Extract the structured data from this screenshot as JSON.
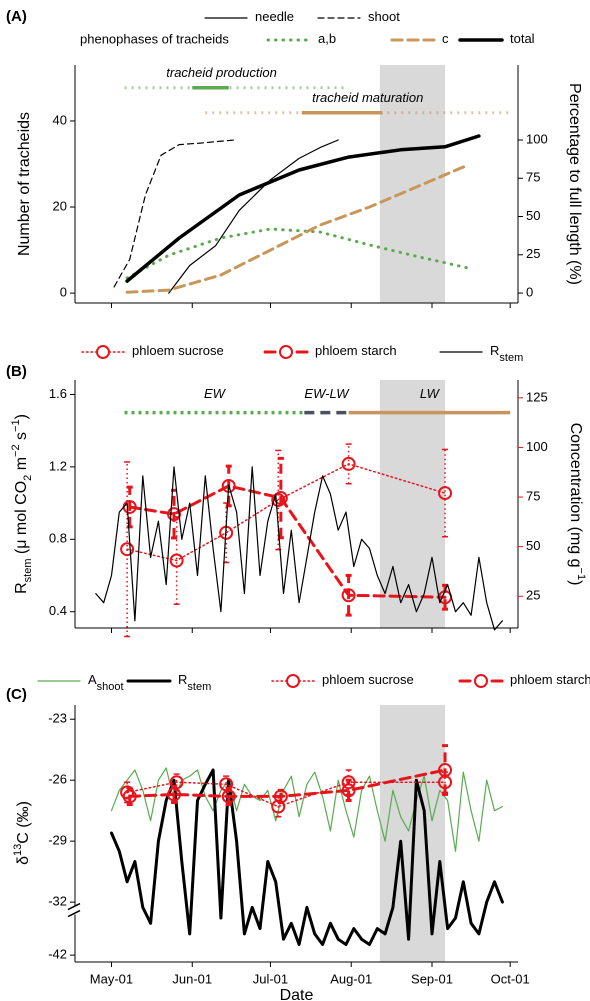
{
  "chart_data": [
    {
      "type": "line",
      "panel": "(A)",
      "ylabel": [
        {
          "text": "Number of tracheids"
        }
      ],
      "y2label": [
        {
          "text": "Percentage to full length (%)"
        }
      ],
      "xlim": [
        107,
        277
      ],
      "xticks": [
        121,
        152,
        182,
        213,
        244,
        274
      ],
      "ylim": [
        -2.3,
        53
      ],
      "yticks": [
        0,
        20,
        40
      ],
      "y2lim": [
        -6.5,
        149
      ],
      "y2ticks": [
        0,
        25,
        50,
        75,
        100
      ],
      "shade": [
        224,
        249
      ],
      "legend_title": "phenophases of tracheids",
      "series": [
        {
          "name": "needle",
          "color": "#000000",
          "dash": "solid",
          "width": 1.2,
          "axis": "y2",
          "x": [
            143,
            151,
            161,
            170,
            182,
            193,
            201,
            208
          ],
          "values": [
            0,
            18,
            31,
            54,
            74,
            88,
            95,
            100
          ]
        },
        {
          "name": "shoot",
          "color": "#000000",
          "dash": "dashed",
          "width": 1.2,
          "axis": "y2",
          "x": [
            122,
            128,
            134,
            140,
            147,
            155,
            168
          ],
          "values": [
            4,
            22,
            64,
            90,
            97,
            98,
            100
          ]
        },
        {
          "name": "a,b",
          "color": "#5aab50",
          "dash": "dotted",
          "width": 3,
          "x": [
            127,
            143,
            163,
            182,
            201,
            220,
            239,
            258
          ],
          "values": [
            3.5,
            8.8,
            12.8,
            14.9,
            14.2,
            11.2,
            8.4,
            5.8
          ]
        },
        {
          "name": "c",
          "color": "#c8965a",
          "dash": "dashed",
          "width": 3,
          "x": [
            127,
            143,
            163,
            182,
            201,
            220,
            239,
            258
          ],
          "values": [
            0.2,
            0.7,
            4.2,
            10,
            15.8,
            20,
            24.9,
            29.8
          ]
        },
        {
          "name": "total",
          "color": "#000000",
          "dash": "solid",
          "width": 3.5,
          "x": [
            127,
            147,
            170,
            193,
            212,
            232,
            249,
            262
          ],
          "values": [
            2.8,
            12.8,
            22.8,
            28.6,
            31.6,
            33.3,
            34,
            36.5
          ]
        }
      ],
      "phase_bars": [
        {
          "label": "tracheid production",
          "color": "#5aab50",
          "level": 47.7,
          "range": [
            126,
            212
          ],
          "solid": [
            152,
            166
          ]
        },
        {
          "label": "tracheid maturation",
          "color": "#c8965a",
          "level": 41.9,
          "range": [
            157,
            274
          ],
          "solid": [
            194,
            225
          ]
        }
      ]
    },
    {
      "type": "line",
      "panel": "(B)",
      "ylabel": [
        {
          "text": "R"
        },
        {
          "text": "stem",
          "shift": "sub"
        },
        {
          "text": " (μ mol CO"
        },
        {
          "text": "2",
          "shift": "sub"
        },
        {
          "text": " m"
        },
        {
          "text": "−2",
          "shift": "super"
        },
        {
          "text": " s"
        },
        {
          "text": "−1",
          "shift": "super"
        },
        {
          "text": ")"
        }
      ],
      "y2label": [
        {
          "text": "Concentration (mg g"
        },
        {
          "text": "−1",
          "shift": "super"
        },
        {
          "text": ")"
        }
      ],
      "y2color": "#e8141c",
      "xlim": [
        107,
        277
      ],
      "xticks": [
        121,
        152,
        182,
        213,
        244,
        274
      ],
      "ylim": [
        0.31,
        1.68
      ],
      "yticks": [
        0.4,
        0.8,
        1.2,
        1.6
      ],
      "y2lim": [
        9,
        134
      ],
      "y2ticks": [
        25,
        50,
        75,
        100,
        125
      ],
      "shade": [
        224,
        249
      ],
      "series": [
        {
          "name": "phloem sucrose",
          "color": "#e8141c",
          "dash": "dotted",
          "width": 1.5,
          "axis": "y2",
          "marker": "circle",
          "x": [
            127,
            146,
            165,
            185,
            212,
            249
          ],
          "values": [
            48.7,
            43,
            57,
            73.5,
            91.7,
            77
          ],
          "errors": [
            44,
            22,
            15,
            25,
            10,
            22
          ]
        },
        {
          "name": "phloem starch",
          "color": "#e8141c",
          "dash": "dashed",
          "width": 3,
          "axis": "y2",
          "marker": "circle",
          "x": [
            128,
            145,
            166,
            186,
            212,
            249
          ],
          "values": [
            70,
            66.4,
            80.6,
            74.5,
            25.5,
            24.5
          ],
          "errors": [
            10,
            12,
            10,
            20,
            10,
            6
          ]
        },
        {
          "name": "R",
          "subscript": "stem",
          "color": "#000000",
          "dash": "solid",
          "width": 1.2,
          "x": [
            115,
            118,
            121,
            124,
            127,
            130,
            133,
            136,
            139,
            142,
            145,
            148,
            151,
            154,
            157,
            160,
            163,
            166,
            169,
            172,
            175,
            178,
            181,
            184,
            187,
            190,
            193,
            196,
            199,
            202,
            205,
            208,
            211,
            214,
            217,
            220,
            223,
            226,
            229,
            232,
            235,
            238,
            241,
            244,
            247,
            250,
            253,
            256,
            259,
            262,
            265,
            268,
            271
          ],
          "values": [
            0.5,
            0.45,
            0.6,
            0.95,
            1.0,
            0.35,
            1.15,
            0.7,
            0.9,
            0.55,
            1.2,
            0.8,
            1.0,
            0.6,
            1.15,
            0.75,
            0.4,
            1.1,
            0.95,
            0.5,
            1.2,
            0.6,
            0.9,
            1.05,
            0.5,
            0.85,
            0.45,
            0.7,
            0.95,
            1.15,
            1.05,
            0.85,
            0.95,
            0.65,
            0.8,
            0.75,
            0.6,
            0.5,
            0.65,
            0.45,
            0.55,
            0.4,
            0.5,
            0.7,
            0.45,
            0.55,
            0.4,
            0.45,
            0.38,
            0.7,
            0.45,
            0.3,
            0.35
          ]
        }
      ],
      "phase_segments": {
        "level": 1.5,
        "items": [
          {
            "label": "EW",
            "color": "#5aab50",
            "dash": "dotted",
            "range": [
              126,
              195
            ]
          },
          {
            "label": "EW-LW",
            "color": "#4a5060",
            "dash": "dashed",
            "range": [
              195,
              212
            ]
          },
          {
            "label": "LW",
            "color": "#c8965a",
            "dash": "solid",
            "range": [
              212,
              274
            ]
          }
        ]
      }
    },
    {
      "type": "line",
      "panel": "(C)",
      "ylabel": [
        {
          "text": "δ"
        },
        {
          "text": "13",
          "shift": "super"
        },
        {
          "text": "C (‰)"
        }
      ],
      "xlabel": "Date",
      "xlim": [
        107,
        277
      ],
      "xticks": [
        {
          "value": 121,
          "label": "May-01"
        },
        {
          "value": 152,
          "label": "Jun-01"
        },
        {
          "value": 182,
          "label": "Jul-01"
        },
        {
          "value": 213,
          "label": "Aug-01"
        },
        {
          "value": 244,
          "label": "Sep-01"
        },
        {
          "value": 274,
          "label": "Oct-01"
        }
      ],
      "ylim": [
        -43.3,
        -22.3
      ],
      "yticks": [
        -23,
        -26,
        -29,
        -32,
        -42
      ],
      "ybreak": -32,
      "shade": [
        224,
        249
      ],
      "series": [
        {
          "name": "A",
          "subscript": "shoot",
          "color": "#5aab50",
          "dash": "solid",
          "width": 1.2,
          "x": [
            121,
            124,
            127,
            130,
            133,
            136,
            139,
            142,
            145,
            148,
            151,
            154,
            157,
            160,
            163,
            166,
            169,
            172,
            175,
            178,
            181,
            184,
            187,
            190,
            193,
            196,
            199,
            202,
            205,
            208,
            211,
            214,
            217,
            220,
            223,
            226,
            229,
            232,
            235,
            238,
            241,
            244,
            247,
            250,
            253,
            256,
            259,
            262,
            265,
            268,
            271
          ],
          "values": [
            -27.5,
            -26.5,
            -26,
            -25.5,
            -26.5,
            -28,
            -26,
            -25.4,
            -27,
            -26,
            -25.8,
            -25.5,
            -26.8,
            -27.5,
            -26.5,
            -26,
            -27.5,
            -26.2,
            -26.8,
            -27,
            -26.5,
            -28,
            -26.5,
            -25.8,
            -27.8,
            -26.2,
            -25.6,
            -26.8,
            -28.5,
            -26,
            -27.5,
            -28.8,
            -26.5,
            -25.8,
            -27.5,
            -29,
            -26.5,
            -27.8,
            -28.5,
            -27,
            -25.8,
            -28,
            -26.5,
            -27,
            -29.5,
            -25.6,
            -27.5,
            -29,
            -26,
            -27.5,
            -27.3
          ]
        },
        {
          "name": "R",
          "subscript": "stem",
          "color": "#000000",
          "dash": "solid",
          "width": 3,
          "x": [
            121,
            124,
            127,
            130,
            133,
            136,
            139,
            142,
            145,
            148,
            151,
            154,
            157,
            160,
            163,
            166,
            169,
            172,
            175,
            178,
            181,
            184,
            187,
            190,
            193,
            196,
            199,
            202,
            205,
            208,
            211,
            214,
            217,
            220,
            223,
            226,
            229,
            232,
            235,
            238,
            241,
            244,
            247,
            250,
            253,
            256,
            259,
            262,
            265,
            268,
            271
          ],
          "values": [
            -28.6,
            -29.5,
            -31,
            -30,
            -33,
            -36,
            -29,
            -27,
            -26,
            -30,
            -38,
            -27,
            -26.2,
            -25.5,
            -35,
            -26,
            -29,
            -38,
            -33,
            -37,
            -30,
            -31,
            -39,
            -36,
            -40,
            -33,
            -38,
            -40,
            -36,
            -39,
            -40,
            -37,
            -39,
            -40,
            -37,
            -38,
            -33,
            -29,
            -39,
            -26,
            -27.5,
            -38,
            -30,
            -37,
            -35,
            -31,
            -36,
            -38,
            -32,
            -31,
            -32
          ]
        },
        {
          "name": "phloem sucrose",
          "color": "#e8141c",
          "dash": "dotted",
          "width": 1.5,
          "marker": "circle",
          "x": [
            127,
            146,
            165,
            185,
            212,
            249
          ],
          "values": [
            -26.6,
            -26.1,
            -26.2,
            -27.3,
            -26.1,
            -26.1
          ],
          "errors": [
            0.5,
            0.4,
            0.4,
            0.5,
            0.6,
            0.5
          ]
        },
        {
          "name": "phloem starch",
          "color": "#e8141c",
          "dash": "dashed",
          "width": 3,
          "marker": "circle",
          "x": [
            128,
            145,
            166,
            186,
            212,
            249
          ],
          "values": [
            -26.8,
            -26.7,
            -26.8,
            -26.8,
            -26.5,
            -25.5
          ],
          "errors": [
            0.4,
            0.4,
            0.4,
            0.3,
            0.5,
            1.2
          ]
        }
      ]
    }
  ]
}
